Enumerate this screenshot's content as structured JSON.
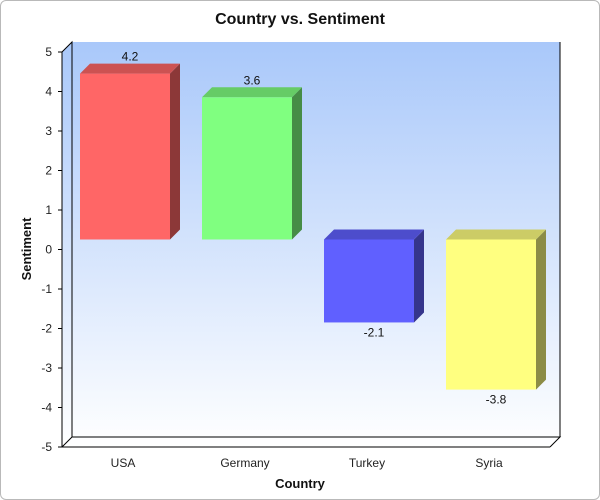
{
  "chart_data": {
    "type": "bar",
    "title": "Country vs. Sentiment",
    "xlabel": "Country",
    "ylabel": "Sentiment",
    "categories": [
      "USA",
      "Germany",
      "Turkey",
      "Syria"
    ],
    "values": [
      4.2,
      3.6,
      -2.1,
      -3.8
    ],
    "data_labels": [
      "4.2",
      "3.6",
      "-2.1",
      "-3.8"
    ],
    "ylim": [
      -5,
      5
    ],
    "yticks": [
      5,
      4,
      3,
      2,
      1,
      0,
      -1,
      -2,
      -3,
      -4,
      -5
    ],
    "bar_colors": [
      "#ff6666",
      "#80ff80",
      "#6060ff",
      "#ffff80"
    ],
    "plot_gradient": [
      "#a9c8fa",
      "#ffffff"
    ],
    "grid": false,
    "legend": "none",
    "style": "3d"
  }
}
